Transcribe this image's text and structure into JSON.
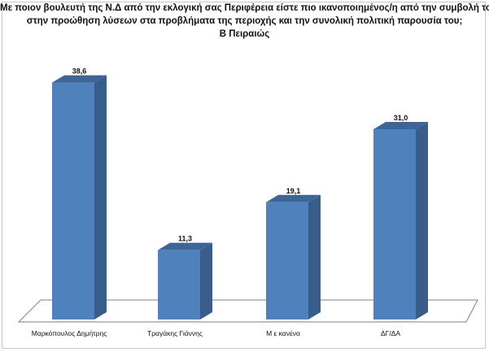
{
  "chart_data": {
    "type": "bar",
    "title_lines": [
      "Με ποιον βουλευτή της Ν.Δ από την εκλογική σας Περιφέρεια είστε πιο ικανοποιημένος/η από την συμβολή του",
      "στην προώθηση λύσεων στα προβλήματα της περιοχής και την συνολική πολιτική παρουσία του;",
      "Β Πειραιώς"
    ],
    "categories": [
      "Μαρκόπουλος Δημήτρης",
      "Τραγάκης Γιάννης",
      "Μ ε κανένα",
      "ΔΓ/ΔΑ"
    ],
    "values": [
      38.6,
      11.3,
      19.1,
      31.0
    ],
    "value_labels": [
      "38,6",
      "11,3",
      "19,1",
      "31,0"
    ],
    "ylim": [
      0,
      45
    ],
    "grid": false,
    "legend": "none",
    "colors": {
      "bar_front": "#4F81BD",
      "bar_side": "#385D8A",
      "bar_top": "#3D6596",
      "floor": "#FFFFFF",
      "floor_edge": "#7F7F7F"
    }
  }
}
